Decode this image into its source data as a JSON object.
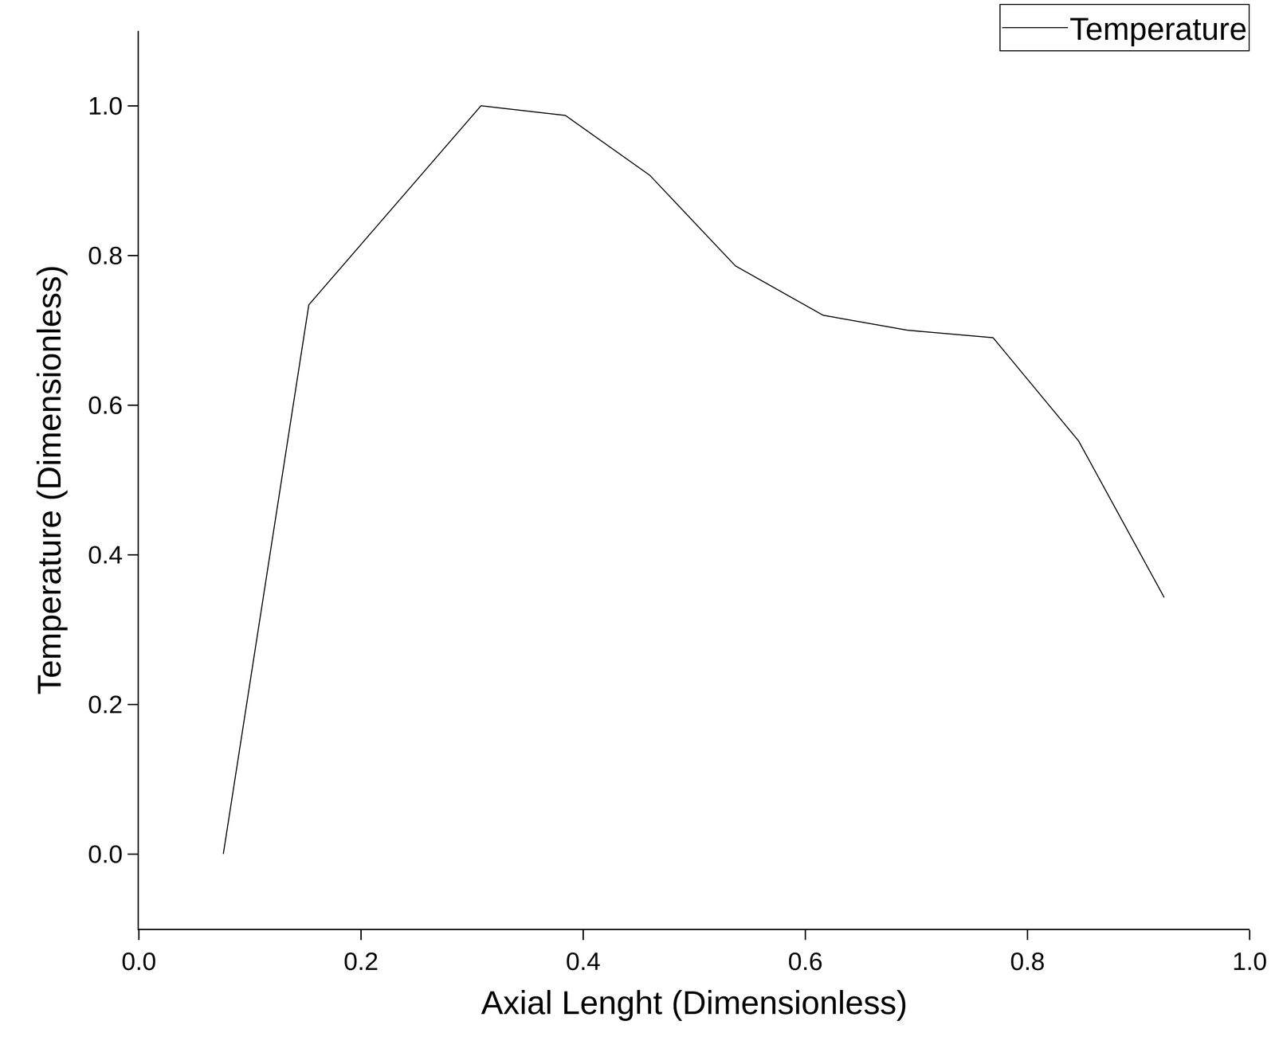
{
  "chart_data": {
    "type": "line",
    "x_label": "Axial Lenght (Dimensionless)",
    "y_label": "Temperature (Dimensionless)",
    "x": [
      0.076,
      0.153,
      0.308,
      0.384,
      0.46,
      0.537,
      0.616,
      0.692,
      0.769,
      0.846,
      0.923
    ],
    "series": [
      {
        "name": "Temperature",
        "color": "#000000",
        "line_style": "solid",
        "values": [
          0.0,
          0.734,
          1.0,
          0.987,
          0.907,
          0.786,
          0.72,
          0.7,
          0.69,
          0.552,
          0.343
        ]
      }
    ],
    "xlim": [
      0,
      1
    ],
    "xticks": [
      {
        "value": 0,
        "label": "0.0"
      },
      {
        "value": 0.2,
        "label": "0.2"
      },
      {
        "value": 0.4,
        "label": "0.4"
      },
      {
        "value": 0.6,
        "label": "0.6"
      },
      {
        "value": 0.8,
        "label": "0.8"
      },
      {
        "value": 1,
        "label": "1.0"
      }
    ],
    "ylim": [
      -0.1,
      1.1
    ],
    "yticks": [
      {
        "value": 0,
        "label": "0.0"
      },
      {
        "value": 0.2,
        "label": "0.2"
      },
      {
        "value": 0.4,
        "label": "0.4"
      },
      {
        "value": 0.6,
        "label": "0.6"
      },
      {
        "value": 0.8,
        "label": "0.8"
      },
      {
        "value": 1,
        "label": "1.0"
      }
    ],
    "grid": false,
    "legend": "top right"
  }
}
